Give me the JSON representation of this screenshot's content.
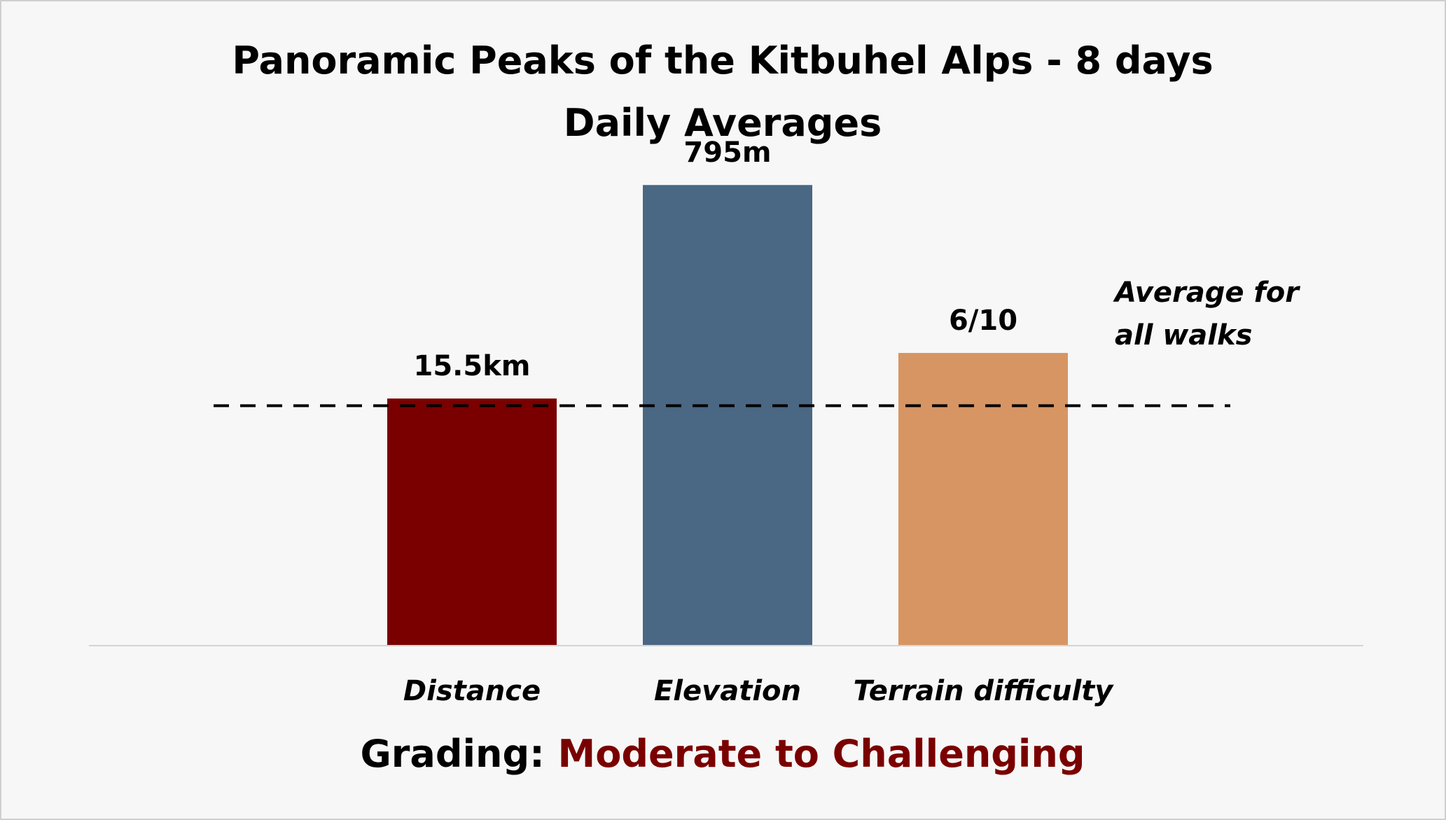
{
  "chart_data": {
    "type": "bar",
    "title": "Panoramic Peaks of the Kitbuhel Alps - 8 days",
    "subtitle": "Daily Averages",
    "categories": [
      "Distance",
      "Elevation",
      "Terrain difficulty"
    ],
    "values": [
      15.5,
      795,
      6
    ],
    "relative_to_average": [
      1.03,
      1.92,
      1.22
    ],
    "data_labels": [
      "15.5km",
      "795m",
      "6/10"
    ],
    "bar_colors": [
      "#7a0000",
      "#4a6784",
      "#d79563"
    ],
    "reference_line": {
      "value": 1.0,
      "label_lines": [
        "Average for",
        "all walks"
      ],
      "style": "dashed"
    },
    "ylim": [
      0,
      2.16
    ],
    "grid": false,
    "xlabel": "",
    "ylabel": ""
  },
  "grading": {
    "label": "Grading: ",
    "value": "Moderate to Challenging",
    "value_color": "#7a0000"
  },
  "colors": {
    "background": "#f7f7f7",
    "axis": "#d4d4d4",
    "reference_line": "#000000"
  }
}
